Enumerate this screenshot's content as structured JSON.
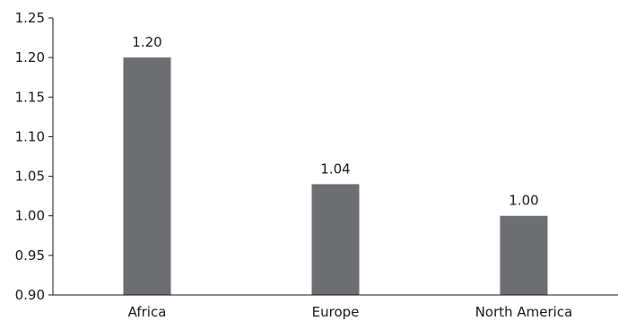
{
  "chart_data": {
    "type": "bar",
    "title": "",
    "xlabel": "",
    "ylabel": "",
    "categories": [
      "Africa",
      "Europe",
      "North America"
    ],
    "values": [
      1.2,
      1.04,
      1.0
    ],
    "data_labels": [
      "1.20",
      "1.04",
      "1.00"
    ],
    "ylim": [
      0.9,
      1.25
    ],
    "yticks": [
      0.9,
      0.95,
      1.0,
      1.05,
      1.1,
      1.15,
      1.2,
      1.25
    ],
    "ytick_labels": [
      "0.90",
      "0.95",
      "1.00",
      "1.05",
      "1.10",
      "1.15",
      "1.20",
      "1.25"
    ],
    "bar_color": "#6d6e71",
    "grid": false,
    "legend": "none"
  }
}
